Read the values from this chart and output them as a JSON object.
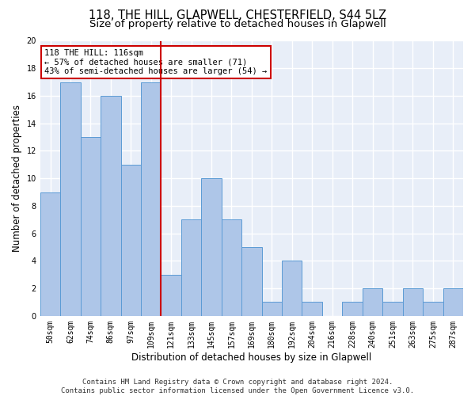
{
  "title": "118, THE HILL, GLAPWELL, CHESTERFIELD, S44 5LZ",
  "subtitle": "Size of property relative to detached houses in Glapwell",
  "xlabel": "Distribution of detached houses by size in Glapwell",
  "ylabel": "Number of detached properties",
  "categories": [
    "50sqm",
    "62sqm",
    "74sqm",
    "86sqm",
    "97sqm",
    "109sqm",
    "121sqm",
    "133sqm",
    "145sqm",
    "157sqm",
    "169sqm",
    "180sqm",
    "192sqm",
    "204sqm",
    "216sqm",
    "228sqm",
    "240sqm",
    "251sqm",
    "263sqm",
    "275sqm",
    "287sqm"
  ],
  "values": [
    9,
    17,
    13,
    16,
    11,
    17,
    3,
    7,
    10,
    7,
    5,
    1,
    4,
    1,
    0,
    1,
    2,
    1,
    2,
    1,
    2
  ],
  "bar_color": "#aec6e8",
  "bar_edge_color": "#5b9bd5",
  "marker_bin_index": 5,
  "marker_color": "#cc0000",
  "annotation_line1": "118 THE HILL: 116sqm",
  "annotation_line2": "← 57% of detached houses are smaller (71)",
  "annotation_line3": "43% of semi-detached houses are larger (54) →",
  "annotation_box_color": "#cc0000",
  "footer_line1": "Contains HM Land Registry data © Crown copyright and database right 2024.",
  "footer_line2": "Contains public sector information licensed under the Open Government Licence v3.0.",
  "ylim": [
    0,
    20
  ],
  "yticks": [
    0,
    2,
    4,
    6,
    8,
    10,
    12,
    14,
    16,
    18,
    20
  ],
  "bg_color": "#e8eef8",
  "grid_color": "#ffffff",
  "title_fontsize": 10.5,
  "subtitle_fontsize": 9.5,
  "xlabel_fontsize": 8.5,
  "ylabel_fontsize": 8.5,
  "tick_fontsize": 7,
  "footer_fontsize": 6.5,
  "annotation_fontsize": 7.5
}
